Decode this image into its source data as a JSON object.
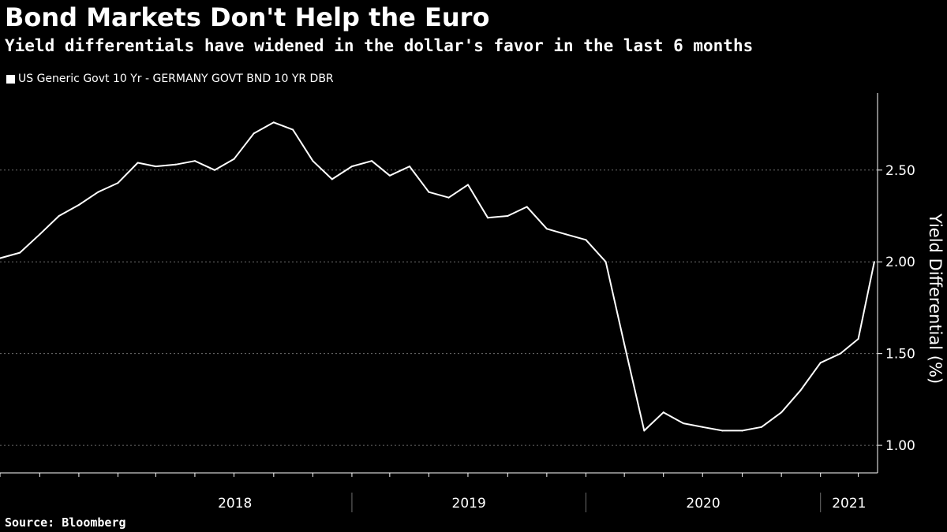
{
  "title": "Bond Markets Don't Help the Euro",
  "subtitle": "Yield differentials have widened in the dollar's favor in the last 6 months",
  "source": "Source: Bloomberg",
  "colors": {
    "background": "#000000",
    "line": "#ffffff",
    "grid": "#6e6e6e",
    "axis": "#ffffff"
  },
  "chart_data": {
    "type": "line",
    "title": "Bond Markets Don't Help the Euro",
    "subtitle": "Yield differentials have widened in the dollar's favor in the last 6 months",
    "ylabel": "Yield Differential (%)",
    "ylim": [
      0.85,
      2.92
    ],
    "ytick_values": [
      1.0,
      1.5,
      2.0,
      2.5
    ],
    "ytick_labels": [
      "1.00",
      "1.50",
      "2.00",
      "2.50"
    ],
    "xlim": [
      "2017-07-01",
      "2021-03-31"
    ],
    "xtick_labels": [
      "2018",
      "2019",
      "2020",
      "2021"
    ],
    "grid": "horizontal dashed",
    "legend_position": "top-left",
    "series": [
      {
        "name": "US Generic Govt 10 Yr - GERMANY GOVT BND 10 YR DBR",
        "x": [
          "2017-07-01",
          "2017-08-01",
          "2017-09-01",
          "2017-10-01",
          "2017-11-01",
          "2017-12-01",
          "2018-01-01",
          "2018-02-01",
          "2018-03-01",
          "2018-04-01",
          "2018-05-01",
          "2018-06-01",
          "2018-07-01",
          "2018-08-01",
          "2018-09-01",
          "2018-10-01",
          "2018-11-01",
          "2018-12-01",
          "2019-01-01",
          "2019-02-01",
          "2019-03-01",
          "2019-04-01",
          "2019-05-01",
          "2019-06-01",
          "2019-07-01",
          "2019-08-01",
          "2019-09-01",
          "2019-10-01",
          "2019-11-01",
          "2019-12-01",
          "2020-01-01",
          "2020-02-01",
          "2020-03-01",
          "2020-04-01",
          "2020-05-01",
          "2020-06-01",
          "2020-07-01",
          "2020-08-01",
          "2020-09-01",
          "2020-10-01",
          "2020-11-01",
          "2020-12-01",
          "2021-01-01",
          "2021-02-01",
          "2021-03-01",
          "2021-03-26"
        ],
        "values": [
          2.02,
          2.05,
          2.15,
          2.25,
          2.31,
          2.38,
          2.43,
          2.54,
          2.52,
          2.53,
          2.55,
          2.5,
          2.56,
          2.7,
          2.76,
          2.72,
          2.55,
          2.45,
          2.52,
          2.55,
          2.47,
          2.52,
          2.38,
          2.35,
          2.42,
          2.24,
          2.25,
          2.3,
          2.18,
          2.15,
          2.12,
          2.0,
          1.55,
          1.08,
          1.18,
          1.12,
          1.1,
          1.08,
          1.08,
          1.1,
          1.18,
          1.3,
          1.45,
          1.5,
          1.58,
          2.0
        ]
      }
    ]
  }
}
